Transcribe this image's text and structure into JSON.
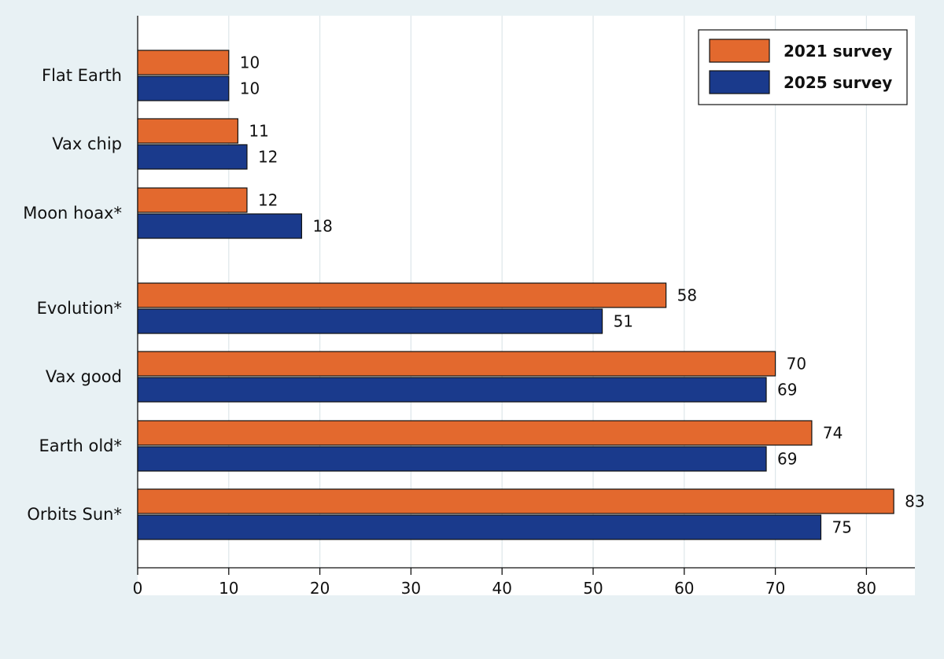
{
  "chart_data": {
    "type": "bar",
    "orientation": "horizontal",
    "categories": [
      "Flat Earth",
      "Vax chip",
      "Moon hoax*",
      "Evolution*",
      "Vax good",
      "Earth old*",
      "Orbits Sun*"
    ],
    "series": [
      {
        "name": "2021 survey",
        "color": "#e3692e",
        "values": [
          10,
          11,
          12,
          58,
          70,
          74,
          83
        ]
      },
      {
        "name": "2025 survey",
        "color": "#1a3a8c",
        "values": [
          10,
          12,
          18,
          51,
          69,
          69,
          75
        ]
      }
    ],
    "xticks": [
      0,
      10,
      20,
      30,
      40,
      50,
      60,
      70,
      80
    ],
    "xlim": [
      0,
      85
    ],
    "grid": true,
    "legend_position": "top-right",
    "data_labels": true,
    "colors": {
      "background": "#e8f1f4",
      "plot_background": "#ffffff",
      "grid": "#dde6ea"
    }
  }
}
